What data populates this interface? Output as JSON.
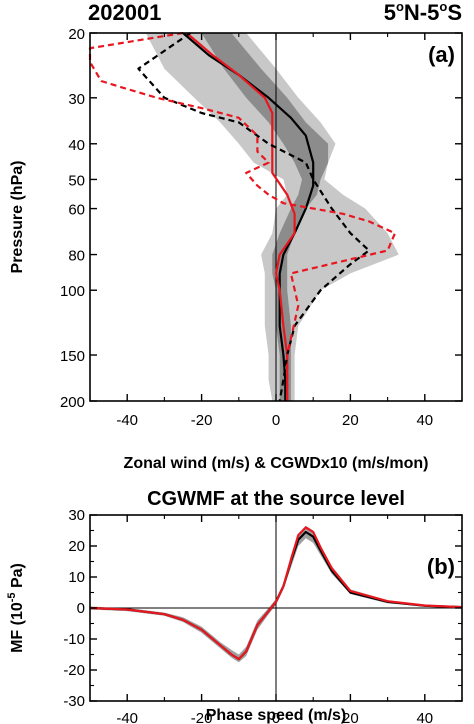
{
  "chart_data": [
    {
      "type": "line",
      "header_left": "202001",
      "header_right_main": "5",
      "header_right_sup1": "o",
      "header_right_mid": "N-5",
      "header_right_sup2": "o",
      "header_right_end": "S",
      "panel_label": "(a)",
      "xlabel": "Zonal wind (m/s) & CGWDx10 (m/s/mon)",
      "ylabel": "Pressure (hPa)",
      "xlim": [
        -50,
        50
      ],
      "ylim": [
        200,
        20
      ],
      "y_scale": "log",
      "xticks": [
        -40,
        -20,
        0,
        20,
        40
      ],
      "xtick_labels": [
        "-40",
        "-20",
        "0",
        "20",
        "40"
      ],
      "yticks": [
        20,
        30,
        40,
        50,
        60,
        80,
        100,
        150,
        200
      ],
      "ytick_labels": [
        "20",
        "30",
        "40",
        "50",
        "60",
        "80",
        "100",
        "150",
        "200"
      ],
      "colors": {
        "black": "#000000",
        "red": "#e8171f",
        "shade_light": "#c8c8c8",
        "shade_dark": "#8c8c8c"
      },
      "shading": [
        {
          "y": [
            20,
            25,
            30,
            35,
            40,
            45,
            50,
            55,
            60,
            70,
            80,
            90,
            100,
            125,
            150,
            175,
            200
          ],
          "lower": [
            -35,
            -30,
            -22,
            -15,
            -10,
            -6,
            2,
            3,
            0,
            -1,
            -4,
            -3,
            -3,
            -3,
            -2,
            -2,
            -1
          ],
          "upper": [
            -8,
            0,
            6,
            12,
            16,
            14,
            13,
            18,
            24,
            30,
            33,
            20,
            12,
            6,
            5,
            5,
            5
          ]
        },
        {
          "y": [
            20,
            25,
            30,
            35,
            40,
            45,
            50,
            55,
            60,
            70,
            80,
            90,
            100,
            125,
            150,
            175,
            200
          ],
          "lower": [
            -20,
            -14,
            -8,
            -2,
            2,
            5,
            7,
            6,
            4,
            1,
            -1,
            -1,
            0,
            0,
            1,
            1,
            1
          ],
          "upper": [
            -12,
            -4,
            3,
            8,
            14,
            14,
            12,
            11,
            8,
            5,
            3,
            3,
            3,
            4,
            4,
            4,
            4
          ]
        }
      ],
      "series": [
        {
          "color": "#000000",
          "dash": false,
          "x": [
            -25,
            -18,
            -10,
            -2,
            4,
            8,
            10,
            10,
            8,
            5,
            2,
            1,
            1,
            1,
            2,
            2.5,
            2.5
          ],
          "y": [
            20,
            23,
            26,
            30,
            34,
            38,
            45,
            52,
            60,
            70,
            80,
            90,
            100,
            125,
            150,
            175,
            200
          ]
        },
        {
          "color": "#e8171f",
          "dash": false,
          "x": [
            -24,
            -17,
            -10,
            -3,
            -1,
            -1,
            -1,
            3,
            5,
            5,
            1,
            0,
            1,
            2,
            3,
            3,
            3
          ],
          "y": [
            20,
            23,
            26,
            30,
            33,
            40,
            48,
            55,
            62,
            70,
            80,
            90,
            100,
            125,
            150,
            175,
            200
          ]
        },
        {
          "color": "#000000",
          "dash": true,
          "x": [
            -23,
            -37,
            -30,
            -20,
            -10,
            -2,
            8,
            10,
            15,
            20,
            25,
            20,
            12,
            5,
            3,
            2,
            1
          ],
          "y": [
            20,
            25,
            30,
            33,
            35,
            40,
            45,
            50,
            60,
            70,
            78,
            85,
            100,
            125,
            150,
            175,
            200
          ]
        },
        {
          "color": "#e8171f",
          "dash": true,
          "x": [
            -25,
            -50,
            -50,
            -47,
            -42,
            -32,
            -20,
            -10,
            -5,
            -5,
            -2,
            -8,
            -5,
            -2,
            2,
            18,
            25,
            32,
            30,
            4,
            6,
            3,
            3,
            3
          ],
          "y": [
            20,
            22,
            24,
            27,
            28,
            30,
            32,
            34,
            38,
            42,
            45,
            48,
            52,
            55,
            58,
            62,
            65,
            70,
            78,
            90,
            110,
            150,
            175,
            200
          ]
        }
      ]
    },
    {
      "type": "line",
      "title": "CGWMF at the source level",
      "panel_label": "(b)",
      "xlabel": "Phase speed (m/s)",
      "ylabel_main": "MF (10",
      "ylabel_sup": "-5",
      "ylabel_end": " Pa)",
      "xlim": [
        -50,
        50
      ],
      "ylim": [
        -30,
        30
      ],
      "xticks": [
        -40,
        -20,
        0,
        20,
        40
      ],
      "xtick_labels": [
        "-40",
        "-20",
        "0",
        "20",
        "40"
      ],
      "yticks": [
        -30,
        -20,
        -10,
        0,
        10,
        20,
        30
      ],
      "ytick_labels": [
        "-30",
        "-20",
        "-10",
        "0",
        "10",
        "20",
        "30"
      ],
      "shading": [
        {
          "x": [
            -50,
            -40,
            -30,
            -25,
            -20,
            -15,
            -12,
            -10,
            -8,
            -5,
            -2,
            0,
            2,
            4,
            6,
            8,
            10,
            12,
            15,
            20,
            30,
            40,
            50
          ],
          "lower": [
            -0.5,
            -1,
            -2.5,
            -4.5,
            -8,
            -13,
            -16,
            -17.5,
            -15.5,
            -7,
            -2,
            1,
            6,
            13,
            20,
            22.5,
            21,
            17,
            11,
            4.5,
            1.5,
            0.5,
            0.2
          ],
          "upper": [
            0.5,
            0,
            -1.5,
            -3,
            -6,
            -11,
            -13.5,
            -15,
            -12.5,
            -4,
            0,
            3,
            8,
            17,
            24,
            26.5,
            25,
            20,
            13.5,
            6,
            2.5,
            1,
            0.5
          ]
        }
      ],
      "series": [
        {
          "color": "#000000",
          "dash": false,
          "x": [
            -50,
            -40,
            -30,
            -25,
            -20,
            -15,
            -12,
            -10,
            -8,
            -5,
            -2,
            0,
            2,
            4,
            6,
            8,
            10,
            12,
            15,
            20,
            30,
            40,
            50
          ],
          "y": [
            0,
            -0.5,
            -2,
            -3.8,
            -7,
            -12,
            -15,
            -16.5,
            -14,
            -5.5,
            -1,
            2,
            7,
            15,
            22,
            24.5,
            23,
            18.5,
            12,
            5,
            2,
            0.7,
            0.3
          ]
        },
        {
          "color": "#e8171f",
          "dash": false,
          "x": [
            -50,
            -40,
            -30,
            -25,
            -20,
            -15,
            -12,
            -10,
            -8,
            -5,
            -2,
            0,
            2,
            4,
            6,
            8,
            10,
            12,
            15,
            20,
            30,
            40,
            50
          ],
          "y": [
            0,
            -0.5,
            -2,
            -3.8,
            -7,
            -12,
            -15,
            -16.5,
            -14,
            -5.5,
            -1,
            2,
            7,
            15.5,
            23.5,
            26,
            24.5,
            19.5,
            12.8,
            5.5,
            2.2,
            0.8,
            0.3
          ]
        }
      ]
    }
  ]
}
